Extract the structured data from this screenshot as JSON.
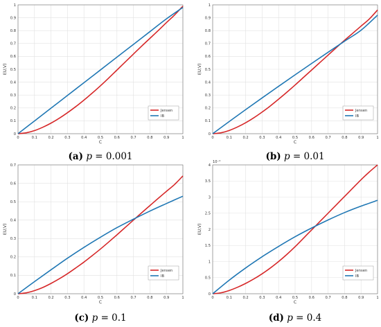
{
  "chart_data": [
    {
      "type": "line",
      "caption": {
        "label": "(a)",
        "var": "p",
        "eq": " = 0.001"
      },
      "xlabel": "C",
      "ylabel": "I(U;V)",
      "xlim": [
        0,
        1
      ],
      "ylim": [
        0,
        1
      ],
      "xticks": [
        "0",
        "0.1",
        "0.2",
        "0.3",
        "0.4",
        "0.5",
        "0.6",
        "0.7",
        "0.8",
        "0.9",
        "1"
      ],
      "yticks": [
        "0",
        "0.1",
        "0.2",
        "0.3",
        "0.4",
        "0.5",
        "0.6",
        "0.7",
        "0.8",
        "0.9",
        "1"
      ],
      "y_multiplier": "",
      "grid": true,
      "legend_position": "lower-right",
      "series": [
        {
          "name": "Jensen",
          "color": "#d62728",
          "x": [
            0,
            0.05,
            0.1,
            0.15,
            0.2,
            0.25,
            0.3,
            0.35,
            0.4,
            0.45,
            0.5,
            0.55,
            0.6,
            0.65,
            0.7,
            0.75,
            0.8,
            0.85,
            0.9,
            0.95,
            1
          ],
          "y": [
            0,
            0.007,
            0.024,
            0.05,
            0.082,
            0.12,
            0.163,
            0.21,
            0.261,
            0.315,
            0.372,
            0.432,
            0.494,
            0.556,
            0.618,
            0.68,
            0.74,
            0.8,
            0.862,
            0.922,
            0.99
          ]
        },
        {
          "name": "IB",
          "color": "#1f77b4",
          "x": [
            0,
            0.1,
            0.2,
            0.3,
            0.4,
            0.5,
            0.6,
            0.7,
            0.8,
            0.9,
            1
          ],
          "y": [
            0,
            0.099,
            0.198,
            0.297,
            0.396,
            0.495,
            0.594,
            0.693,
            0.792,
            0.891,
            0.98
          ]
        }
      ]
    },
    {
      "type": "line",
      "caption": {
        "label": "(b)",
        "var": "p",
        "eq": " = 0.01"
      },
      "xlabel": "C",
      "ylabel": "I(U;V)",
      "xlim": [
        0,
        1
      ],
      "ylim": [
        0,
        1
      ],
      "xticks": [
        "0",
        "0.1",
        "0.2",
        "0.3",
        "0.4",
        "0.5",
        "0.6",
        "0.7",
        "0.8",
        "0.9",
        "1"
      ],
      "yticks": [
        "0",
        "0.1",
        "0.2",
        "0.3",
        "0.4",
        "0.5",
        "0.6",
        "0.7",
        "0.8",
        "0.9",
        "1"
      ],
      "y_multiplier": "",
      "grid": true,
      "legend_position": "lower-right",
      "series": [
        {
          "name": "Jensen",
          "color": "#d62728",
          "x": [
            0,
            0.05,
            0.1,
            0.15,
            0.2,
            0.25,
            0.3,
            0.35,
            0.4,
            0.45,
            0.5,
            0.55,
            0.6,
            0.65,
            0.7,
            0.75,
            0.8,
            0.85,
            0.9,
            0.95,
            1
          ],
          "y": [
            0,
            0.007,
            0.025,
            0.052,
            0.085,
            0.124,
            0.168,
            0.216,
            0.268,
            0.322,
            0.378,
            0.436,
            0.494,
            0.552,
            0.61,
            0.668,
            0.725,
            0.78,
            0.835,
            0.89,
            0.96
          ]
        },
        {
          "name": "IB",
          "color": "#1f77b4",
          "x": [
            0,
            0.1,
            0.2,
            0.3,
            0.4,
            0.5,
            0.6,
            0.7,
            0.8,
            0.9,
            1
          ],
          "y": [
            0,
            0.094,
            0.187,
            0.278,
            0.368,
            0.457,
            0.545,
            0.632,
            0.718,
            0.803,
            0.92
          ]
        }
      ]
    },
    {
      "type": "line",
      "caption": {
        "label": "(c)",
        "var": "p",
        "eq": " = 0.1"
      },
      "xlabel": "C",
      "ylabel": "I(U;V)",
      "xlim": [
        0,
        1
      ],
      "ylim": [
        0,
        0.7
      ],
      "xticks": [
        "0",
        "0.1",
        "0.2",
        "0.3",
        "0.4",
        "0.5",
        "0.6",
        "0.7",
        "0.8",
        "0.9",
        "1"
      ],
      "yticks": [
        "0",
        "0.1",
        "0.2",
        "0.3",
        "0.4",
        "0.5",
        "0.6",
        "0.7"
      ],
      "y_multiplier": "",
      "grid": true,
      "legend_position": "lower-right",
      "series": [
        {
          "name": "Jensen",
          "color": "#d62728",
          "x": [
            0,
            0.05,
            0.1,
            0.15,
            0.2,
            0.25,
            0.3,
            0.35,
            0.4,
            0.45,
            0.5,
            0.55,
            0.6,
            0.65,
            0.7,
            0.75,
            0.8,
            0.85,
            0.9,
            0.95,
            1
          ],
          "y": [
            0,
            0.005,
            0.017,
            0.034,
            0.056,
            0.081,
            0.109,
            0.14,
            0.172,
            0.207,
            0.243,
            0.281,
            0.32,
            0.36,
            0.4,
            0.44,
            0.479,
            0.518,
            0.556,
            0.594,
            0.64
          ]
        },
        {
          "name": "IB",
          "color": "#1f77b4",
          "x": [
            0,
            0.1,
            0.2,
            0.3,
            0.4,
            0.5,
            0.6,
            0.7,
            0.8,
            0.9,
            1
          ],
          "y": [
            0,
            0.066,
            0.13,
            0.193,
            0.252,
            0.307,
            0.359,
            0.405,
            0.449,
            0.49,
            0.53
          ]
        }
      ]
    },
    {
      "type": "line",
      "caption": {
        "label": "(d)",
        "var": "p",
        "eq": " = 0.4"
      },
      "xlabel": "C",
      "ylabel": "I(U;V)",
      "xlim": [
        0,
        1
      ],
      "ylim": [
        0,
        4
      ],
      "xticks": [
        "0",
        "0.1",
        "0.2",
        "0.3",
        "0.4",
        "0.5",
        "0.6",
        "0.7",
        "0.8",
        "0.9",
        "1"
      ],
      "yticks": [
        "0",
        "0.5",
        "1",
        "1.5",
        "2",
        "2.5",
        "3",
        "3.5",
        "4"
      ],
      "y_multiplier": "10⁻²",
      "grid": true,
      "legend_position": "lower-right",
      "series": [
        {
          "name": "Jensen",
          "color": "#d62728",
          "x": [
            0,
            0.05,
            0.1,
            0.15,
            0.2,
            0.25,
            0.3,
            0.35,
            0.4,
            0.45,
            0.5,
            0.55,
            0.6,
            0.65,
            0.7,
            0.75,
            0.8,
            0.85,
            0.9,
            0.95,
            1
          ],
          "y": [
            0,
            0.03,
            0.1,
            0.2,
            0.32,
            0.46,
            0.62,
            0.8,
            1.0,
            1.22,
            1.46,
            1.72,
            1.98,
            2.24,
            2.5,
            2.76,
            3.02,
            3.28,
            3.54,
            3.78,
            4.0
          ]
        },
        {
          "name": "IB",
          "color": "#1f77b4",
          "x": [
            0,
            0.1,
            0.2,
            0.3,
            0.4,
            0.5,
            0.6,
            0.7,
            0.8,
            0.9,
            1
          ],
          "y": [
            0,
            0.42,
            0.8,
            1.15,
            1.47,
            1.77,
            2.04,
            2.29,
            2.52,
            2.72,
            2.9
          ]
        }
      ]
    }
  ]
}
